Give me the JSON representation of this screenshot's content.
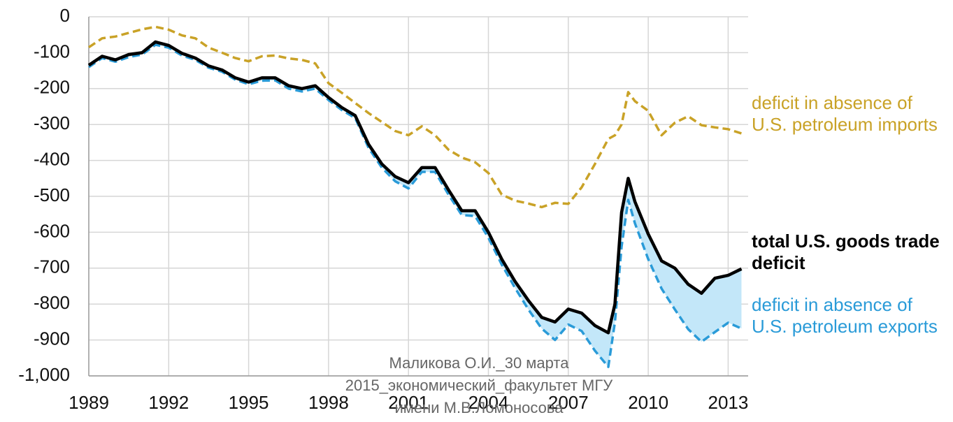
{
  "chart_data": {
    "type": "line",
    "x": [
      1989,
      1989.5,
      1990,
      1990.5,
      1991,
      1991.5,
      1992,
      1992.5,
      1993,
      1993.5,
      1994,
      1994.5,
      1995,
      1995.5,
      1996,
      1996.5,
      1997,
      1997.5,
      1998,
      1998.5,
      1999,
      1999.5,
      2000,
      2000.5,
      2001,
      2001.5,
      2002,
      2002.5,
      2003,
      2003.5,
      2004,
      2004.5,
      2005,
      2005.5,
      2006,
      2006.5,
      2007,
      2007.5,
      2008,
      2008.5,
      2008.75,
      2009,
      2009.25,
      2009.5,
      2010,
      2010.5,
      2011,
      2011.5,
      2012,
      2012.5,
      2013,
      2013.5
    ],
    "series": [
      {
        "name": "total U.S. goods trade deficit",
        "color": "#000000",
        "dash": false,
        "values": [
          -135,
          -110,
          -120,
          -105,
          -100,
          -70,
          -80,
          -102,
          -115,
          -137,
          -148,
          -170,
          -182,
          -170,
          -170,
          -192,
          -200,
          -192,
          -225,
          -253,
          -275,
          -355,
          -410,
          -445,
          -462,
          -420,
          -420,
          -482,
          -540,
          -540,
          -600,
          -675,
          -737,
          -790,
          -837,
          -850,
          -814,
          -825,
          -860,
          -880,
          -800,
          -545,
          -450,
          -515,
          -605,
          -680,
          -700,
          -745,
          -770,
          -728,
          -720,
          -702
        ]
      },
      {
        "name": "deficit in absence of U.S. petroleum imports",
        "color": "#c9a227",
        "dash": true,
        "values": [
          -85,
          -60,
          -55,
          -45,
          -35,
          -28,
          -36,
          -52,
          -60,
          -86,
          -100,
          -115,
          -124,
          -110,
          -108,
          -116,
          -120,
          -130,
          -185,
          -212,
          -240,
          -268,
          -293,
          -318,
          -330,
          -305,
          -330,
          -370,
          -392,
          -405,
          -435,
          -495,
          -512,
          -520,
          -530,
          -518,
          -521,
          -475,
          -410,
          -340,
          -330,
          -300,
          -210,
          -235,
          -262,
          -330,
          -295,
          -277,
          -302,
          -308,
          -313,
          -325
        ]
      },
      {
        "name": "deficit in absence of U.S. petroleum exports",
        "color": "#2a9bd8",
        "dash": true,
        "values": [
          -140,
          -115,
          -125,
          -112,
          -105,
          -78,
          -86,
          -108,
          -120,
          -142,
          -153,
          -175,
          -188,
          -178,
          -177,
          -200,
          -208,
          -200,
          -232,
          -260,
          -282,
          -365,
          -420,
          -458,
          -478,
          -432,
          -432,
          -495,
          -552,
          -555,
          -615,
          -690,
          -755,
          -815,
          -868,
          -900,
          -857,
          -875,
          -930,
          -975,
          -850,
          -640,
          -510,
          -575,
          -675,
          -757,
          -815,
          -870,
          -905,
          -878,
          -852,
          -868
        ]
      }
    ],
    "fill_between": {
      "series": [
        0,
        2
      ],
      "color": "#c3e7f9"
    },
    "xlim": [
      1989,
      2013.75
    ],
    "ylim": [
      -1000,
      0
    ],
    "xticks": [
      1989,
      1992,
      1995,
      1998,
      2001,
      2004,
      2007,
      2010,
      2013
    ],
    "yticks": [
      0,
      -100,
      -200,
      -300,
      -400,
      -500,
      -600,
      -700,
      -800,
      -900,
      {
        "value": -1000,
        "label": "-1,000"
      }
    ],
    "grid": true,
    "watermark": [
      "Маликова О.И._30 марта",
      "2015_экономический_факультет МГУ",
      "имени М.В.Ломоносова"
    ]
  }
}
